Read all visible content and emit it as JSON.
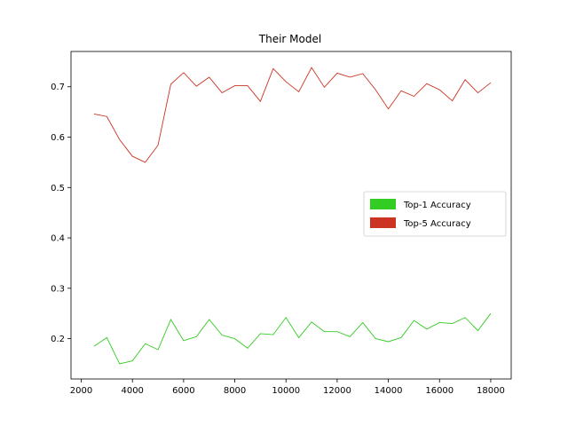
{
  "chart_data": {
    "type": "line",
    "title": "Their Model",
    "xlabel": "",
    "ylabel": "",
    "xlim": [
      1600,
      18800
    ],
    "ylim": [
      0.12,
      0.77
    ],
    "xticks": [
      2000,
      4000,
      6000,
      8000,
      10000,
      12000,
      14000,
      16000,
      18000
    ],
    "xtick_labels": [
      "2000",
      "4000",
      "6000",
      "8000",
      "10000",
      "12000",
      "14000",
      "16000",
      "18000"
    ],
    "yticks": [
      0.2,
      0.3,
      0.4,
      0.5,
      0.6,
      0.7
    ],
    "ytick_labels": [
      "0.2",
      "0.3",
      "0.4",
      "0.5",
      "0.6",
      "0.7"
    ],
    "grid": false,
    "legend_position": "center-right",
    "x": [
      2500,
      3000,
      3500,
      4000,
      4500,
      5000,
      5500,
      6000,
      6500,
      7000,
      7500,
      8000,
      8500,
      9000,
      9500,
      10000,
      10500,
      11000,
      11500,
      12000,
      12500,
      13000,
      13500,
      14000,
      14500,
      15000,
      15500,
      16000,
      16500,
      17000,
      17500,
      18000
    ],
    "series": [
      {
        "name": "Top-1 Accuracy",
        "color": "#33cc22",
        "values": [
          0.185,
          0.202,
          0.15,
          0.156,
          0.19,
          0.178,
          0.238,
          0.196,
          0.204,
          0.238,
          0.207,
          0.2,
          0.181,
          0.21,
          0.208,
          0.242,
          0.202,
          0.233,
          0.214,
          0.214,
          0.204,
          0.232,
          0.2,
          0.194,
          0.202,
          0.236,
          0.219,
          0.232,
          0.23,
          0.242,
          0.216,
          0.25
        ]
      },
      {
        "name": "Top-5 Accuracy",
        "color": "#cc3322",
        "values": [
          0.646,
          0.641,
          0.595,
          0.562,
          0.55,
          0.584,
          0.705,
          0.728,
          0.701,
          0.719,
          0.688,
          0.702,
          0.702,
          0.671,
          0.736,
          0.71,
          0.69,
          0.738,
          0.699,
          0.727,
          0.719,
          0.726,
          0.694,
          0.656,
          0.692,
          0.681,
          0.706,
          0.694,
          0.672,
          0.714,
          0.688,
          0.708
        ]
      }
    ]
  }
}
